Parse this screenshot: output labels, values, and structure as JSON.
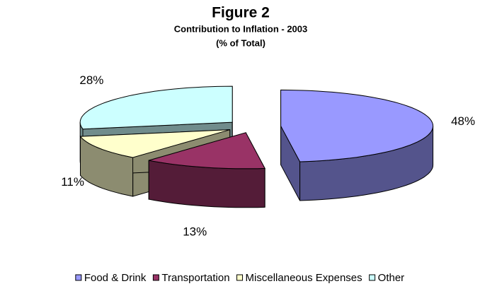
{
  "chart_data": {
    "type": "pie3d",
    "title": "Figure 2",
    "subtitle": [
      "Contribution to Inflation - 2003",
      "(% of Total)"
    ],
    "categories": [
      "Food & Drink",
      "Transportation",
      "Miscellaneous Expenses",
      "Other"
    ],
    "values": [
      48,
      13,
      11,
      28
    ],
    "value_labels": [
      "48%",
      "13%",
      "11%",
      "28%"
    ],
    "colors": [
      "#9999ff",
      "#993366",
      "#ffffcc",
      "#ccffff"
    ],
    "legend": "bottom"
  }
}
